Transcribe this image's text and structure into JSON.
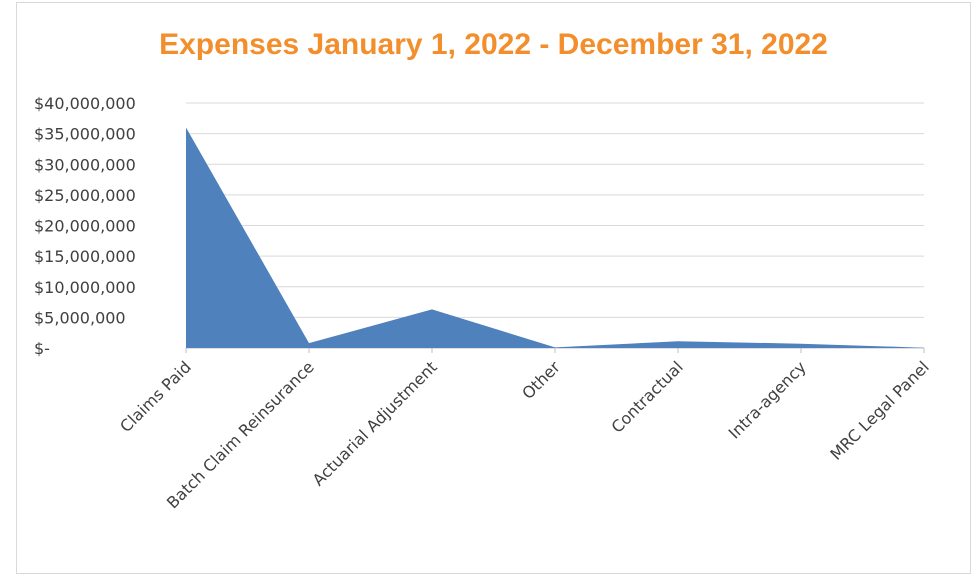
{
  "chart_data": {
    "type": "area",
    "title": "Expenses January 1, 2022 - December 31, 2022",
    "title_color": "#f28e2b",
    "area_color": "#4f81bd",
    "categories": [
      "Claims Paid",
      "Batch Claim Reinsurance",
      "Actuarial Adjustment",
      "Other",
      "Contractual",
      "Intra-agency",
      "MRC Legal Panel"
    ],
    "values": [
      36000000,
      800000,
      6300000,
      100000,
      1100000,
      700000,
      50000
    ],
    "ylim": [
      0,
      40000000
    ],
    "yticks": [
      0,
      5000000,
      10000000,
      15000000,
      20000000,
      25000000,
      30000000,
      35000000,
      40000000
    ],
    "ytick_labels": [
      "$-",
      "$5,000,000",
      "$10,000,000",
      "$15,000,000",
      "$20,000,000",
      "$25,000,000",
      "$30,000,000",
      "$35,000,000",
      "$40,000,000"
    ],
    "grid": true,
    "legend": "none"
  }
}
